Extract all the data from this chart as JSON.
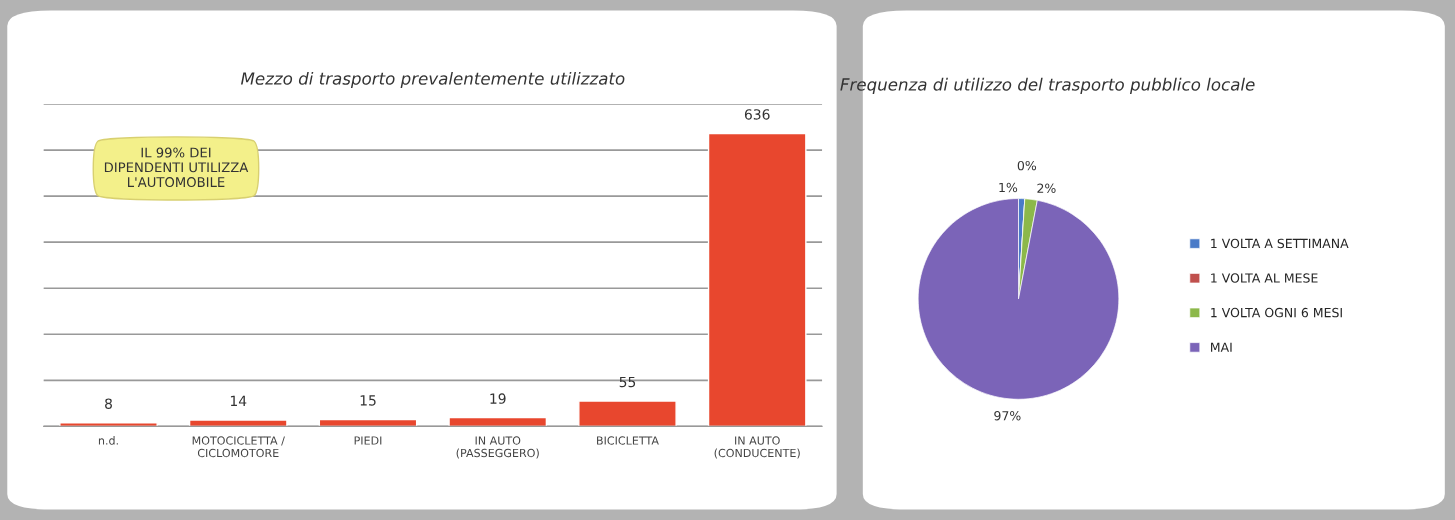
{
  "chart_data": [
    {
      "type": "bar",
      "title": "Mezzo di trasporto prevalentemente utilizzato",
      "categories": [
        "n.d.",
        "MOTOCICLETTA /\nCICLOMOTORE",
        "PIEDI",
        "IN AUTO\n(PASSEGGERO)",
        "BICICLETTA",
        "IN AUTO\n(CONDUCENTE)"
      ],
      "values": [
        8,
        14,
        15,
        19,
        55,
        636
      ],
      "color": "#e8472e",
      "ylim": [
        0,
        700
      ],
      "yticks": [
        {
          "value": 0,
          "label": null
        },
        {
          "value": 100,
          "label": null
        },
        {
          "value": 200,
          "label": null
        },
        {
          "value": 300,
          "label": null
        },
        {
          "value": 400,
          "label": null
        },
        {
          "value": 500,
          "label": null
        },
        {
          "value": 600,
          "label": null
        },
        {
          "value": 700,
          "label": null
        }
      ],
      "grid": "y",
      "tick_labels": "x",
      "data_labels": true,
      "annotations": [
        "IL 99% DEI\nDIPENDENTI UTILIZZA\nL'AUTOMOBILE"
      ]
    },
    {
      "type": "pie",
      "title": "Frequenza di utilizzo del trasporto pubblico locale",
      "categories": [
        "1 VOLTA A SETTIMANA",
        "1 VOLTA AL MESE",
        "1 VOLTA OGNI 6 MESI",
        "MAI"
      ],
      "values": [
        1,
        0,
        2,
        97
      ],
      "colors": [
        "#4a7bc8",
        "#c0504d",
        "#8cb84a",
        "#7b64b8"
      ],
      "value_labels": [
        "1%",
        "0%",
        "2%",
        "97%"
      ],
      "legend": "right"
    }
  ]
}
